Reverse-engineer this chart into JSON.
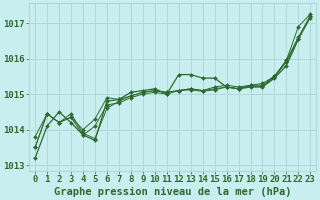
{
  "background_color": "#c8eef0",
  "grid_color": "#b0d8da",
  "line_color": "#2d6a2d",
  "xlabel": "Graphe pression niveau de la mer (hPa)",
  "xlabel_fontsize": 7.5,
  "tick_fontsize": 6.5,
  "ylim": [
    1012.85,
    1017.55
  ],
  "yticks": [
    1013,
    1014,
    1015,
    1016,
    1017
  ],
  "xlim": [
    -0.5,
    23.5
  ],
  "xticks": [
    0,
    1,
    2,
    3,
    4,
    5,
    6,
    7,
    8,
    9,
    10,
    11,
    12,
    13,
    14,
    15,
    16,
    17,
    18,
    19,
    20,
    21,
    22,
    23
  ],
  "lines": [
    [
      1013.2,
      1014.1,
      1014.5,
      1014.2,
      1013.85,
      1013.7,
      1014.8,
      1014.85,
      1015.05,
      1015.1,
      1015.15,
      1015.0,
      1015.55,
      1015.55,
      1015.45,
      1015.45,
      1015.2,
      1015.15,
      1015.2,
      1015.2,
      1015.45,
      1015.8,
      1016.55,
      1017.2
    ],
    [
      1013.5,
      1014.45,
      1014.2,
      1014.45,
      1013.9,
      1013.75,
      1014.6,
      1014.8,
      1014.95,
      1015.05,
      1015.1,
      1015.05,
      1015.1,
      1015.15,
      1015.1,
      1015.15,
      1015.2,
      1015.15,
      1015.25,
      1015.25,
      1015.5,
      1015.95,
      1016.9,
      1017.25
    ],
    [
      1013.8,
      1014.45,
      1014.2,
      1014.35,
      1014.0,
      1014.3,
      1014.9,
      1014.85,
      1014.95,
      1015.05,
      1015.1,
      1015.05,
      1015.1,
      1015.15,
      1015.1,
      1015.2,
      1015.25,
      1015.2,
      1015.25,
      1015.3,
      1015.5,
      1015.95,
      1016.6,
      1017.2
    ],
    [
      1013.5,
      1014.45,
      1014.2,
      1014.35,
      1013.85,
      1014.1,
      1014.7,
      1014.75,
      1014.9,
      1015.0,
      1015.05,
      1015.0,
      1015.1,
      1015.12,
      1015.08,
      1015.12,
      1015.2,
      1015.15,
      1015.22,
      1015.22,
      1015.48,
      1015.9,
      1016.55,
      1017.15
    ]
  ]
}
